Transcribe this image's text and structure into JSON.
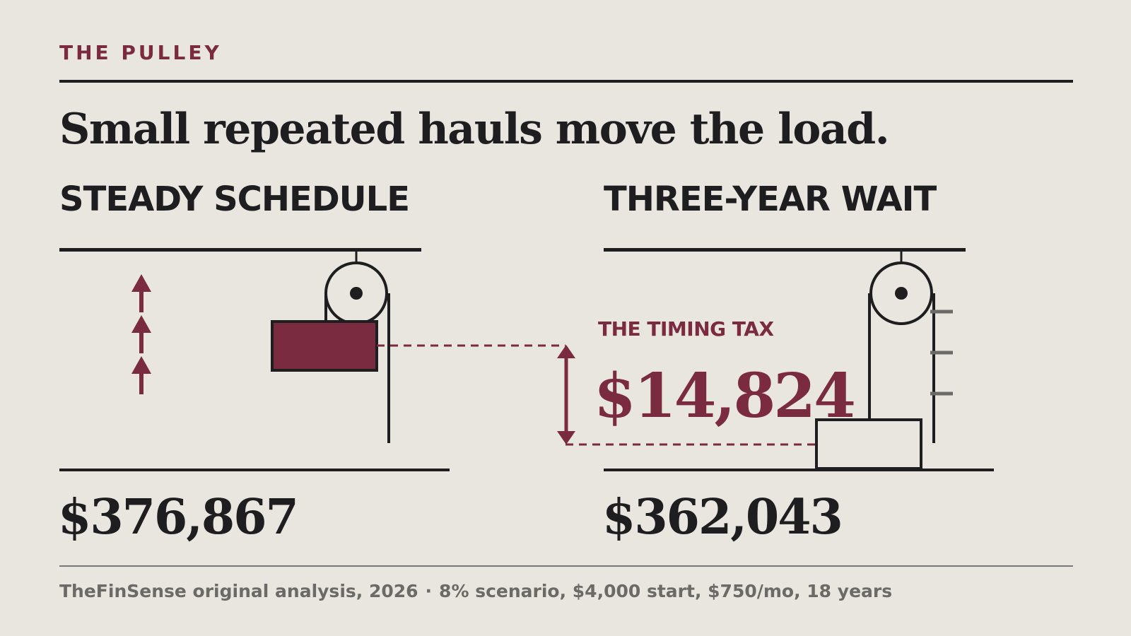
{
  "kicker": "THE PULLEY",
  "headline": "Small repeated hauls move the load.",
  "panels": [
    {
      "title": "STEADY SCHEDULE",
      "value": "$376,867"
    },
    {
      "title": "THREE-YEAR WAIT",
      "value": "$362,043"
    }
  ],
  "timing_tax": {
    "label": "THE TIMING TAX",
    "value": "$14,824"
  },
  "footer": {
    "source": "TheFinSense original analysis, 2026",
    "separator": "·",
    "assumptions": "8% scenario, $4,000 start, $750/mo, 18 years"
  },
  "colors": {
    "accent": "#7b2b3f",
    "ink": "#1e1e20",
    "background": "#e9e6e0",
    "muted": "#6c6a66"
  }
}
